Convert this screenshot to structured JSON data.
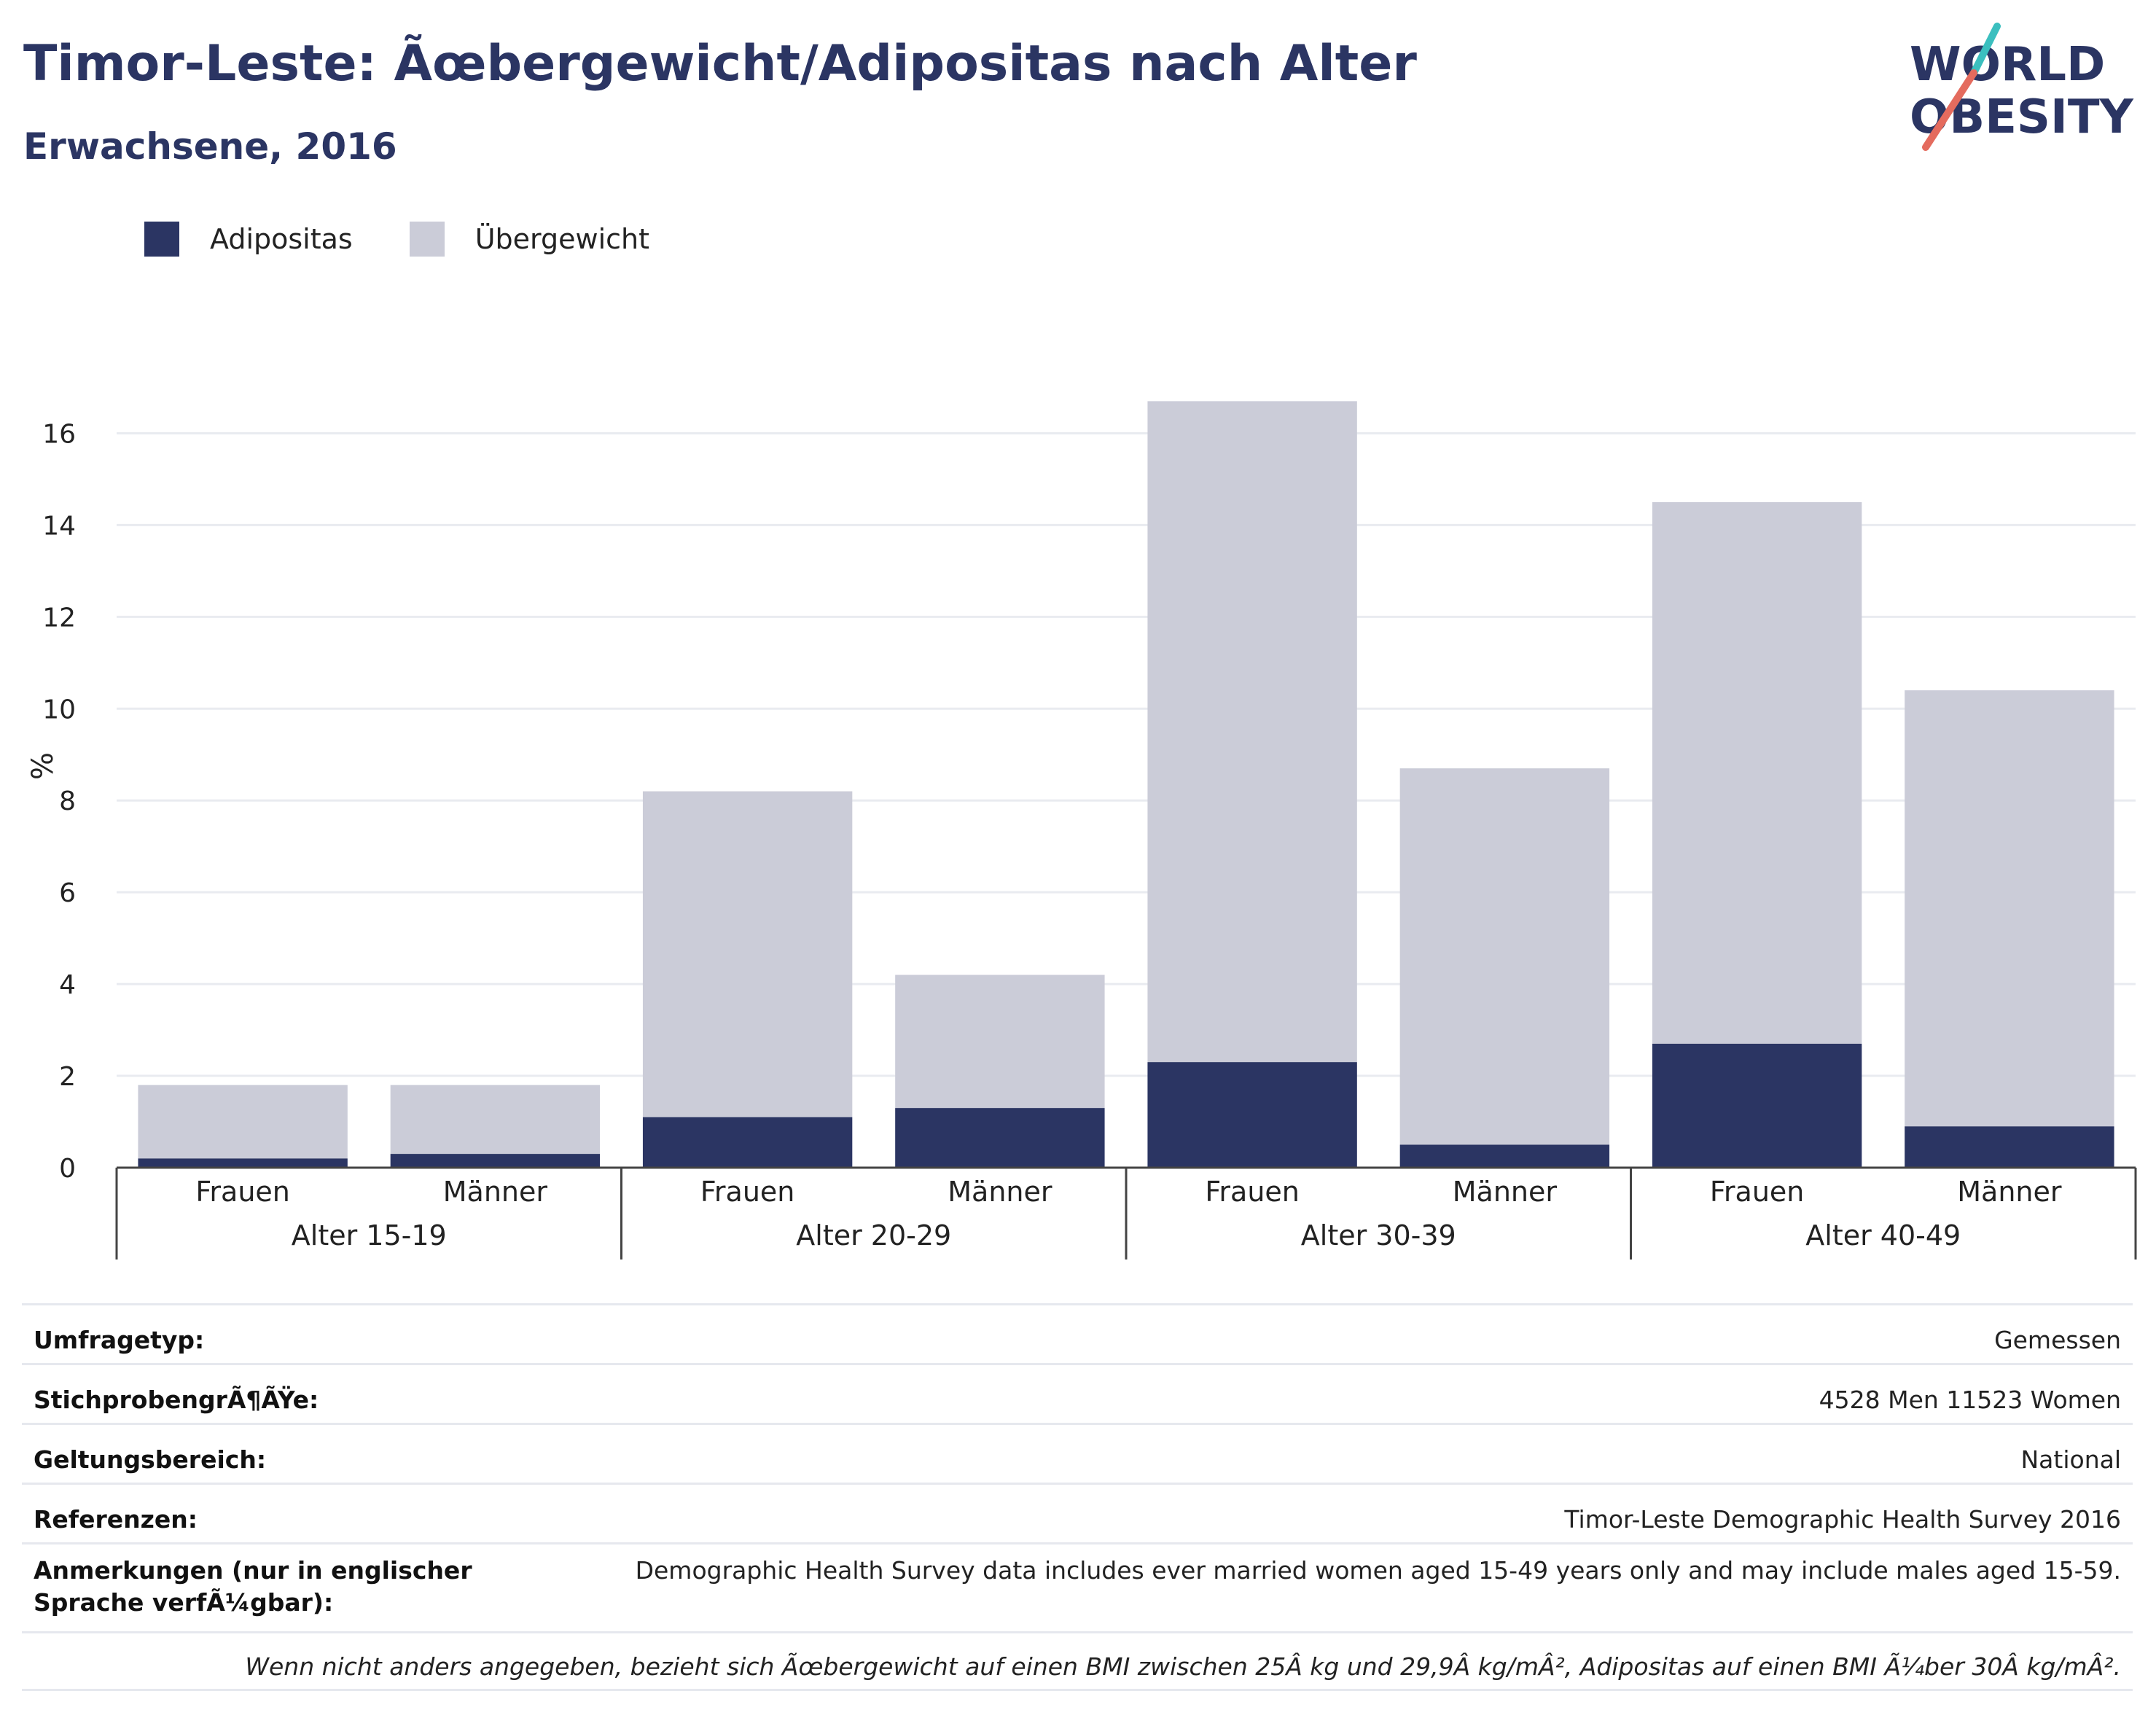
{
  "title": "Timor-Leste: Ãœbergewicht/Adipositas nach Alter",
  "subtitle": "Erwachsene, 2016",
  "logo": {
    "line1": "WORLD",
    "line2": "OBESITY"
  },
  "legend": [
    {
      "label": "Adipositas",
      "color": "#2b3563"
    },
    {
      "label": "Übergewicht",
      "color": "#cbccd8"
    }
  ],
  "chart_data": {
    "type": "bar",
    "stacked": true,
    "ylabel": "%",
    "ylim": [
      0,
      17.5
    ],
    "yticks": [
      0,
      2,
      4,
      6,
      8,
      10,
      12,
      14,
      16
    ],
    "grid": true,
    "legend_position": "top-left",
    "groups": [
      "Alter 15-19",
      "Alter 20-29",
      "Alter 30-39",
      "Alter 40-49"
    ],
    "categories": [
      "Frauen",
      "Männer",
      "Frauen",
      "Männer",
      "Frauen",
      "Männer",
      "Frauen",
      "Männer"
    ],
    "series": [
      {
        "name": "Adipositas",
        "color": "#2b3563",
        "values": [
          0.2,
          0.3,
          1.1,
          1.3,
          2.3,
          0.5,
          2.7,
          0.9
        ]
      },
      {
        "name": "Übergewicht",
        "color": "#cbccd8",
        "values": [
          1.6,
          1.5,
          7.1,
          2.9,
          14.4,
          8.2,
          11.8,
          9.5
        ]
      }
    ]
  },
  "meta": {
    "rows": [
      {
        "key": "Umfragetyp:",
        "value": "Gemessen"
      },
      {
        "key": "StichprobengrÃ¶ÃŸe:",
        "value": "4528 Men 11523 Women"
      },
      {
        "key": "Geltungsbereich:",
        "value": "National"
      },
      {
        "key": "Referenzen:",
        "value": "Timor-Leste Demographic Health Survey 2016"
      },
      {
        "key": "Anmerkungen (nur in englischer Sprache verfÃ¼gbar):",
        "value": "Demographic Health Survey data includes ever married women aged 15-49 years only and may include males aged 15-59."
      }
    ],
    "note": "Wenn nicht anders angegeben, bezieht sich Ãœbergewicht auf einen BMI zwischen 25Â kg und 29,9Â kg/mÂ², Adipositas auf einen BMI Ã¼ber 30Â kg/mÂ²."
  }
}
